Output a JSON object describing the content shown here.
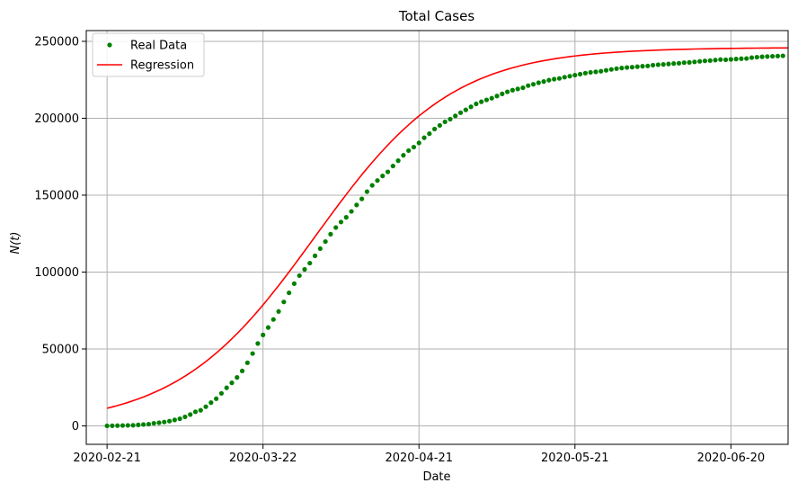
{
  "chart_data": {
    "type": "scatter",
    "title": "Total Cases",
    "xlabel": "Date",
    "ylabel": "N(t)",
    "x_ticks": [
      "2020-02-21",
      "2020-03-22",
      "2020-04-21",
      "2020-05-21",
      "2020-06-20"
    ],
    "y_ticks": [
      "0",
      "50000",
      "100000",
      "150000",
      "200000",
      "250000"
    ],
    "xlim": [
      "2020-02-17",
      "2020-07-01"
    ],
    "ylim": [
      -12000,
      257000
    ],
    "grid": true,
    "legend_position": "top-left",
    "colors": {
      "real": "#008000",
      "regression": "#ff0000",
      "grid": "#b0b0b0"
    },
    "series": [
      {
        "name": "Real Data",
        "kind": "scatter",
        "x": [
          "2020-02-21",
          "2020-02-22",
          "2020-02-23",
          "2020-02-24",
          "2020-02-25",
          "2020-02-26",
          "2020-02-27",
          "2020-02-28",
          "2020-02-29",
          "2020-03-01",
          "2020-03-02",
          "2020-03-03",
          "2020-03-04",
          "2020-03-05",
          "2020-03-06",
          "2020-03-07",
          "2020-03-08",
          "2020-03-09",
          "2020-03-10",
          "2020-03-11",
          "2020-03-12",
          "2020-03-13",
          "2020-03-14",
          "2020-03-15",
          "2020-03-16",
          "2020-03-17",
          "2020-03-18",
          "2020-03-19",
          "2020-03-20",
          "2020-03-21",
          "2020-03-22",
          "2020-03-23",
          "2020-03-24",
          "2020-03-25",
          "2020-03-26",
          "2020-03-27",
          "2020-03-28",
          "2020-03-29",
          "2020-03-30",
          "2020-03-31",
          "2020-04-01",
          "2020-04-02",
          "2020-04-03",
          "2020-04-04",
          "2020-04-05",
          "2020-04-06",
          "2020-04-07",
          "2020-04-08",
          "2020-04-09",
          "2020-04-10",
          "2020-04-11",
          "2020-04-12",
          "2020-04-13",
          "2020-04-14",
          "2020-04-15",
          "2020-04-16",
          "2020-04-17",
          "2020-04-18",
          "2020-04-19",
          "2020-04-20",
          "2020-04-21",
          "2020-04-22",
          "2020-04-23",
          "2020-04-24",
          "2020-04-25",
          "2020-04-26",
          "2020-04-27",
          "2020-04-28",
          "2020-04-29",
          "2020-04-30",
          "2020-05-01",
          "2020-05-02",
          "2020-05-03",
          "2020-05-04",
          "2020-05-05",
          "2020-05-06",
          "2020-05-07",
          "2020-05-08",
          "2020-05-09",
          "2020-05-10",
          "2020-05-11",
          "2020-05-12",
          "2020-05-13",
          "2020-05-14",
          "2020-05-15",
          "2020-05-16",
          "2020-05-17",
          "2020-05-18",
          "2020-05-19",
          "2020-05-20",
          "2020-05-21",
          "2020-05-22",
          "2020-05-23",
          "2020-05-24",
          "2020-05-25",
          "2020-05-26",
          "2020-05-27",
          "2020-05-28",
          "2020-05-29",
          "2020-05-30",
          "2020-05-31",
          "2020-06-01",
          "2020-06-02",
          "2020-06-03",
          "2020-06-04",
          "2020-06-05",
          "2020-06-06",
          "2020-06-07",
          "2020-06-08",
          "2020-06-09",
          "2020-06-10",
          "2020-06-11",
          "2020-06-12",
          "2020-06-13",
          "2020-06-14",
          "2020-06-15",
          "2020-06-16",
          "2020-06-17",
          "2020-06-18",
          "2020-06-19",
          "2020-06-20",
          "2020-06-21",
          "2020-06-22",
          "2020-06-23",
          "2020-06-24",
          "2020-06-25",
          "2020-06-26",
          "2020-06-27",
          "2020-06-28",
          "2020-06-29",
          "2020-06-30"
        ],
        "y": [
          20,
          79,
          150,
          229,
          322,
          400,
          650,
          888,
          1128,
          1694,
          2036,
          2502,
          3089,
          3858,
          4636,
          5883,
          7375,
          9172,
          10149,
          12462,
          15113,
          17660,
          21157,
          24747,
          27980,
          31506,
          35713,
          41035,
          47021,
          53578,
          59138,
          63927,
          69176,
          74386,
          80589,
          86498,
          92472,
          97689,
          101739,
          105792,
          110574,
          115242,
          119827,
          124632,
          128948,
          132547,
          135586,
          139422,
          143626,
          147577,
          152271,
          156363,
          159516,
          162488,
          165155,
          168941,
          172434,
          175925,
          178972,
          181228,
          183957,
          187327,
          189973,
          192994,
          195351,
          197675,
          199414,
          201505,
          203591,
          205463,
          207428,
          209328,
          210717,
          211938,
          213013,
          214457,
          215858,
          217185,
          218268,
          219070,
          219814,
          221216,
          222104,
          223096,
          223885,
          224760,
          225435,
          225886,
          226699,
          227364,
          228006,
          228658,
          229327,
          229858,
          230158,
          230555,
          231139,
          231732,
          232248,
          232664,
          232997,
          233197,
          233515,
          233836,
          234013,
          234531,
          234801,
          234998,
          235278,
          235561,
          235763,
          236142,
          236305,
          236651,
          236989,
          237290,
          237500,
          237828,
          238159,
          238011,
          238275,
          238499,
          238720,
          238833,
          239410,
          239706,
          239961,
          240136,
          240310,
          240436,
          240578
        ]
      },
      {
        "name": "Regression",
        "kind": "line",
        "model": {
          "type": "logistic",
          "K": 246000,
          "rate": 0.0755,
          "midpoint": "2020-04-01",
          "start": "2020-02-21",
          "end": "2020-07-01"
        }
      }
    ]
  }
}
